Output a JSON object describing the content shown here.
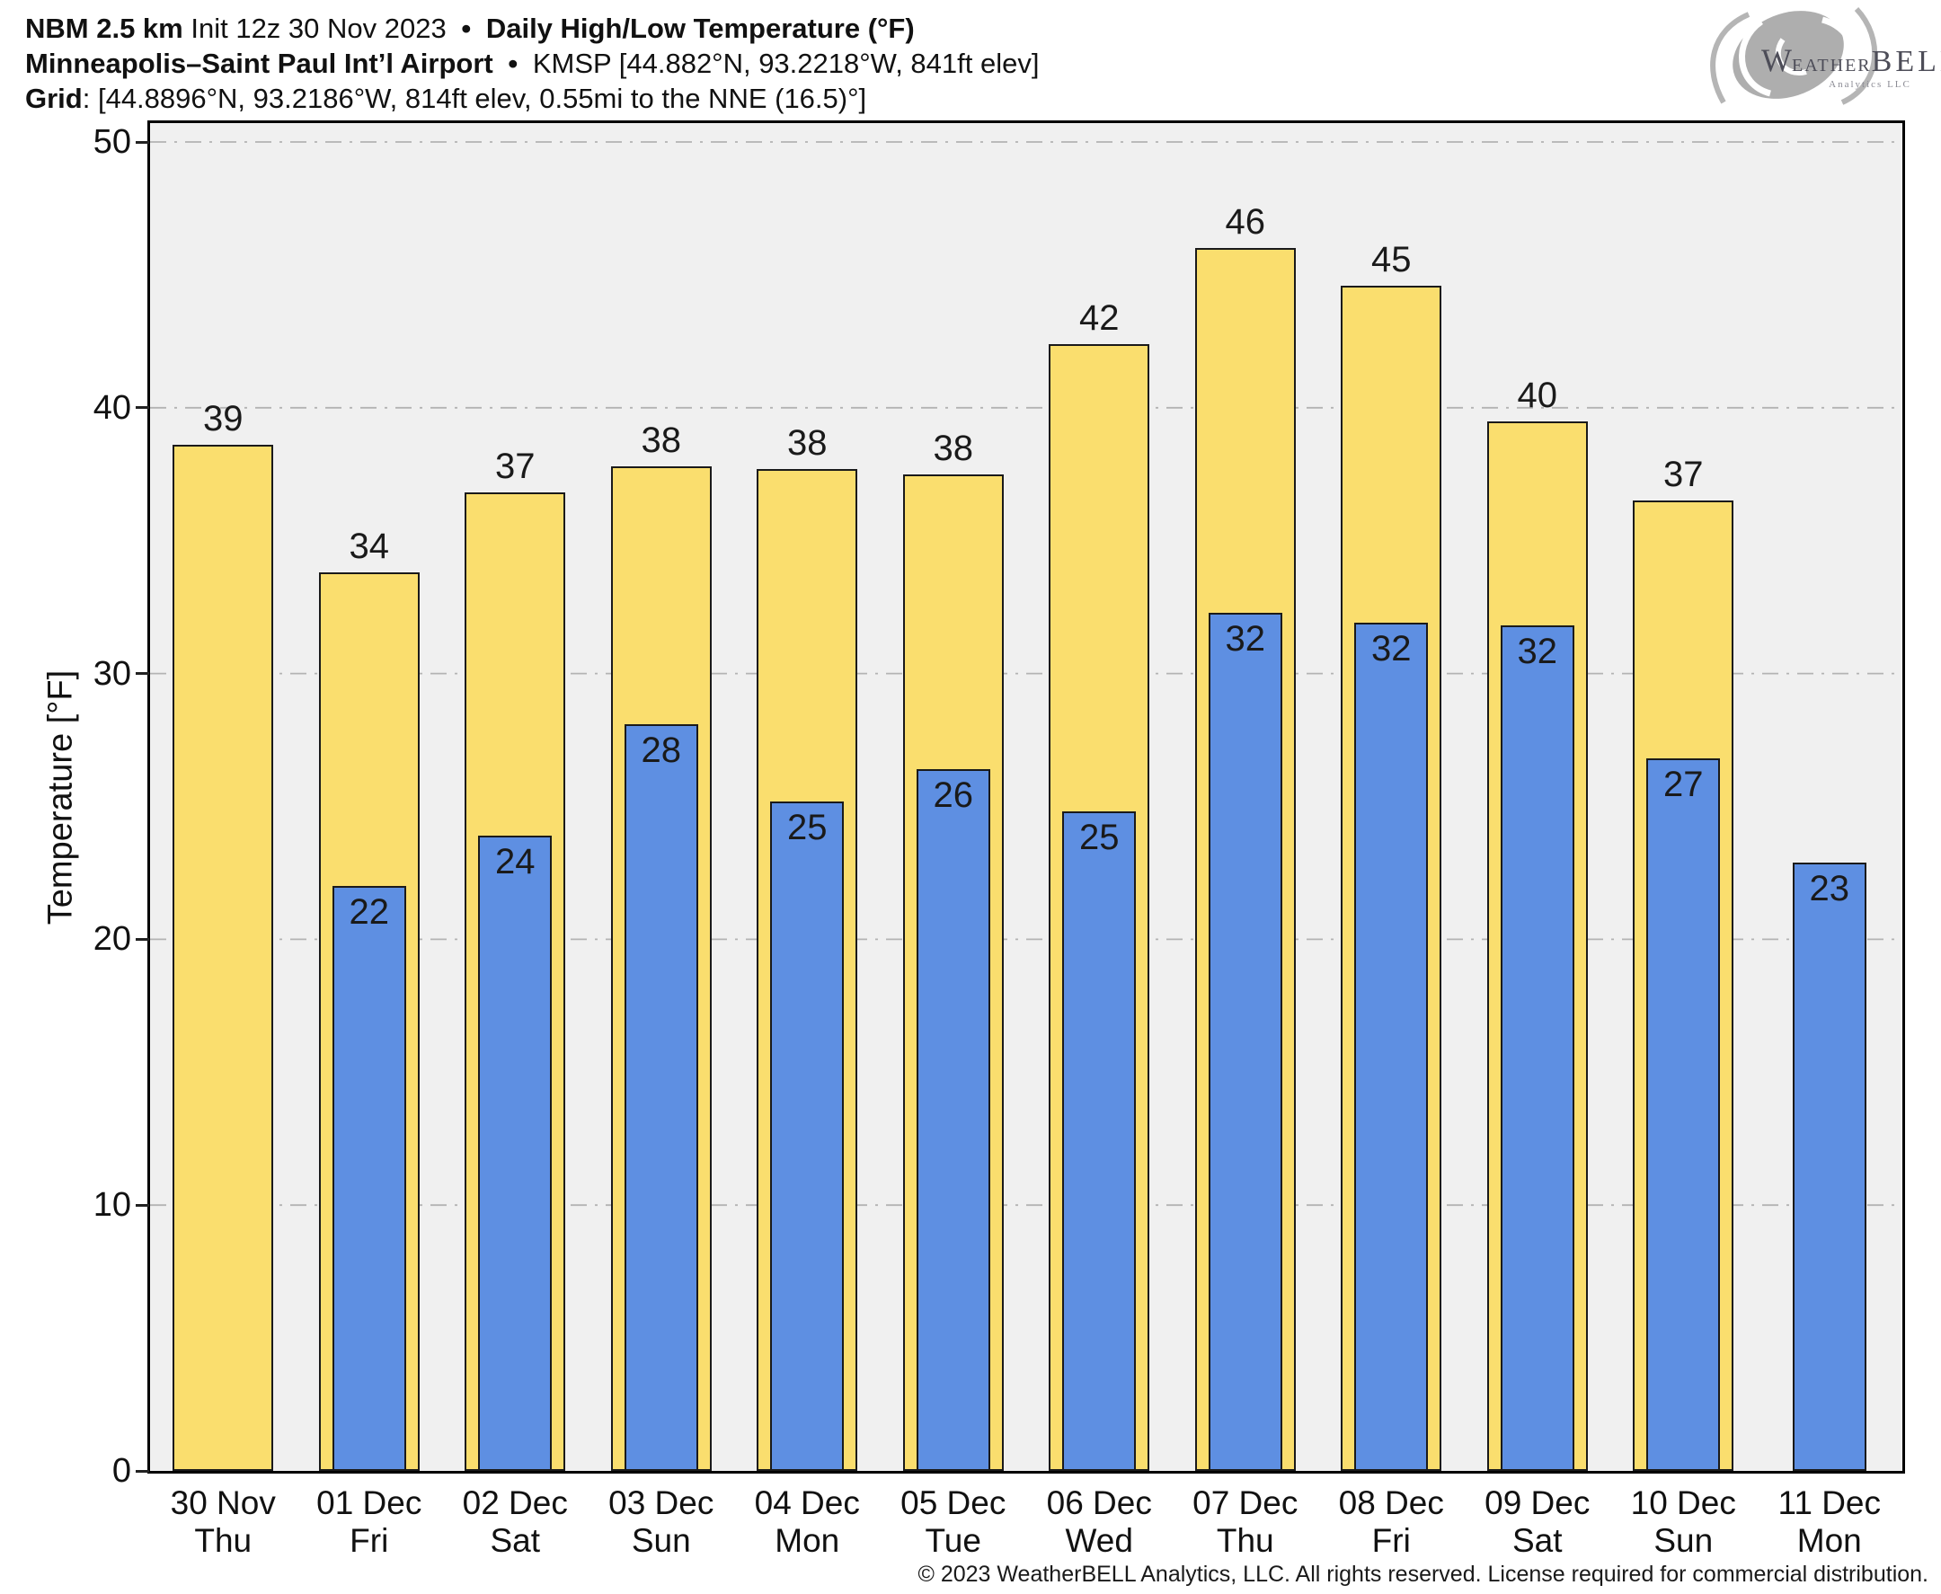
{
  "header": {
    "line1": {
      "model": "NBM 2.5 km",
      "init": "Init 12z 30 Nov 2023",
      "separator": "•",
      "title": "Daily High/Low Temperature (°F)"
    },
    "line2": {
      "station": "Minneapolis–Saint Paul Int’l Airport",
      "separator": "•",
      "details": "KMSP [44.882°N, 93.2218°W, 841ft elev]"
    },
    "line3": {
      "label": "Grid",
      "details": ": [44.8896°N, 93.2186°W, 814ft elev, 0.55mi to the NNE (16.5)°]"
    }
  },
  "logo": {
    "w": "W",
    "eather": "EATHER",
    "bell": "BELL",
    "sub": "Analytics LLC"
  },
  "footer": {
    "copyright": "© 2023 WeatherBELL Analytics, LLC. All rights reserved. License required for commercial distribution."
  },
  "chart_data": {
    "type": "bar",
    "title": "Daily High/Low Temperature (°F)",
    "xlabel": "",
    "ylabel": "Temperature [°F]",
    "ylim": [
      0,
      50
    ],
    "yticks": [
      0,
      10,
      20,
      30,
      40,
      50
    ],
    "gridlines_at": [
      10,
      20,
      30,
      40,
      50
    ],
    "grid_style": "dash-dot",
    "legend_position": "none",
    "plot_background": "#f0f0f0",
    "gridline_color": "#b3b3b3",
    "categories": [
      {
        "date": "30 Nov",
        "day": "Thu"
      },
      {
        "date": "01 Dec",
        "day": "Fri"
      },
      {
        "date": "02 Dec",
        "day": "Sat"
      },
      {
        "date": "03 Dec",
        "day": "Sun"
      },
      {
        "date": "04 Dec",
        "day": "Mon"
      },
      {
        "date": "05 Dec",
        "day": "Tue"
      },
      {
        "date": "06 Dec",
        "day": "Wed"
      },
      {
        "date": "07 Dec",
        "day": "Thu"
      },
      {
        "date": "08 Dec",
        "day": "Fri"
      },
      {
        "date": "09 Dec",
        "day": "Sat"
      },
      {
        "date": "10 Dec",
        "day": "Sun"
      },
      {
        "date": "11 Dec",
        "day": "Mon"
      }
    ],
    "series": [
      {
        "name": "Daily High",
        "color": "#FADE6E",
        "label_values": [
          39,
          34,
          37,
          38,
          38,
          38,
          42,
          46,
          45,
          40,
          37,
          null
        ],
        "bar_heights": [
          38.6,
          33.8,
          36.8,
          37.8,
          37.7,
          37.5,
          42.4,
          46.0,
          44.6,
          39.5,
          36.5,
          null
        ]
      },
      {
        "name": "Daily Low",
        "color": "#5E8FE2",
        "label_values": [
          null,
          22,
          24,
          28,
          25,
          26,
          25,
          32,
          32,
          32,
          27,
          23
        ],
        "bar_heights": [
          null,
          22.0,
          23.9,
          28.1,
          25.2,
          26.4,
          24.8,
          32.3,
          31.9,
          31.8,
          26.8,
          22.9
        ]
      }
    ]
  }
}
